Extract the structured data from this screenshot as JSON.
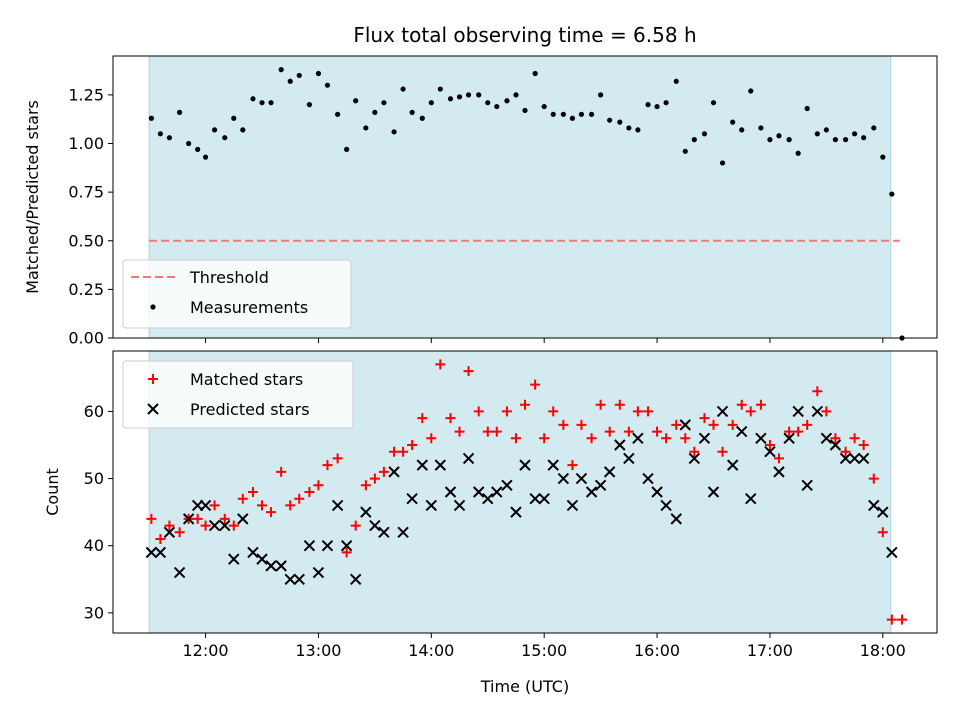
{
  "chart_data": {
    "type": "scatter",
    "title": "Flux total observing time = 6.58 h",
    "xlabel": "Time (UTC)",
    "x_ticks": [
      "12:00",
      "13:00",
      "14:00",
      "15:00",
      "16:00",
      "17:00",
      "18:00"
    ],
    "x_tick_hours": [
      12,
      13,
      14,
      15,
      16,
      17,
      18
    ],
    "xlim": [
      11.18,
      18.48
    ],
    "observing_window": [
      11.5,
      18.07
    ],
    "colors": {
      "window": "#d3eaf0",
      "window_edge": "#a8d5e0",
      "threshold": "#f47676",
      "measurements": "#000000",
      "matched": "#ff0000",
      "predicted": "#000000"
    },
    "top_panel": {
      "ylabel": "Matched/Predicted stars",
      "ylim": [
        0,
        1.45
      ],
      "y_ticks": [
        "0.00",
        "0.25",
        "0.50",
        "0.75",
        "1.00",
        "1.25"
      ],
      "y_tick_values": [
        0,
        0.25,
        0.5,
        0.75,
        1.0,
        1.25
      ],
      "threshold": {
        "name": "Threshold",
        "y": 0.5,
        "x_range": [
          11.5,
          18.15
        ]
      },
      "legend": {
        "placement": "lower-left",
        "entries": [
          "Threshold",
          "Measurements"
        ]
      },
      "series": [
        {
          "name": "Measurements",
          "points": [
            [
              11.52,
              1.13
            ],
            [
              11.6,
              1.05
            ],
            [
              11.68,
              1.03
            ],
            [
              11.77,
              1.16
            ],
            [
              11.85,
              1.0
            ],
            [
              11.93,
              0.97
            ],
            [
              12.0,
              0.93
            ],
            [
              12.08,
              1.07
            ],
            [
              12.17,
              1.03
            ],
            [
              12.25,
              1.13
            ],
            [
              12.33,
              1.07
            ],
            [
              12.42,
              1.23
            ],
            [
              12.5,
              1.21
            ],
            [
              12.58,
              1.21
            ],
            [
              12.67,
              1.38
            ],
            [
              12.75,
              1.32
            ],
            [
              12.83,
              1.35
            ],
            [
              12.92,
              1.2
            ],
            [
              13.0,
              1.36
            ],
            [
              13.08,
              1.3
            ],
            [
              13.17,
              1.15
            ],
            [
              13.25,
              0.97
            ],
            [
              13.33,
              1.22
            ],
            [
              13.42,
              1.08
            ],
            [
              13.5,
              1.16
            ],
            [
              13.58,
              1.21
            ],
            [
              13.67,
              1.06
            ],
            [
              13.75,
              1.28
            ],
            [
              13.83,
              1.16
            ],
            [
              13.92,
              1.13
            ],
            [
              14.0,
              1.21
            ],
            [
              14.08,
              1.28
            ],
            [
              14.17,
              1.23
            ],
            [
              14.25,
              1.24
            ],
            [
              14.33,
              1.25
            ],
            [
              14.42,
              1.25
            ],
            [
              14.5,
              1.21
            ],
            [
              14.58,
              1.19
            ],
            [
              14.67,
              1.22
            ],
            [
              14.75,
              1.25
            ],
            [
              14.83,
              1.17
            ],
            [
              14.92,
              1.36
            ],
            [
              15.0,
              1.19
            ],
            [
              15.08,
              1.15
            ],
            [
              15.17,
              1.15
            ],
            [
              15.25,
              1.13
            ],
            [
              15.33,
              1.15
            ],
            [
              15.42,
              1.15
            ],
            [
              15.5,
              1.25
            ],
            [
              15.58,
              1.12
            ],
            [
              15.67,
              1.11
            ],
            [
              15.75,
              1.08
            ],
            [
              15.83,
              1.07
            ],
            [
              15.92,
              1.2
            ],
            [
              16.0,
              1.19
            ],
            [
              16.08,
              1.21
            ],
            [
              16.17,
              1.32
            ],
            [
              16.25,
              0.96
            ],
            [
              16.33,
              1.02
            ],
            [
              16.42,
              1.05
            ],
            [
              16.5,
              1.21
            ],
            [
              16.58,
              0.9
            ],
            [
              16.67,
              1.11
            ],
            [
              16.75,
              1.07
            ],
            [
              16.83,
              1.27
            ],
            [
              16.92,
              1.08
            ],
            [
              17.0,
              1.02
            ],
            [
              17.08,
              1.04
            ],
            [
              17.17,
              1.02
            ],
            [
              17.25,
              0.95
            ],
            [
              17.33,
              1.18
            ],
            [
              17.42,
              1.05
            ],
            [
              17.5,
              1.07
            ],
            [
              17.58,
              1.02
            ],
            [
              17.67,
              1.02
            ],
            [
              17.75,
              1.05
            ],
            [
              17.83,
              1.03
            ],
            [
              17.92,
              1.08
            ],
            [
              18.0,
              0.93
            ],
            [
              18.08,
              0.74
            ],
            [
              18.17,
              0.0
            ]
          ]
        }
      ]
    },
    "bottom_panel": {
      "ylabel": "Count",
      "ylim": [
        27,
        69
      ],
      "y_ticks": [
        "30",
        "40",
        "50",
        "60"
      ],
      "y_tick_values": [
        30,
        40,
        50,
        60
      ],
      "legend": {
        "placement": "upper-left",
        "entries": [
          "Matched stars",
          "Predicted stars"
        ]
      },
      "series": [
        {
          "name": "Matched stars",
          "marker": "plus",
          "points": [
            [
              11.52,
              44
            ],
            [
              11.6,
              41
            ],
            [
              11.68,
              43
            ],
            [
              11.77,
              42
            ],
            [
              11.85,
              44
            ],
            [
              11.93,
              44
            ],
            [
              12.0,
              43
            ],
            [
              12.08,
              46
            ],
            [
              12.17,
              44
            ],
            [
              12.25,
              43
            ],
            [
              12.33,
              47
            ],
            [
              12.42,
              48
            ],
            [
              12.5,
              46
            ],
            [
              12.58,
              45
            ],
            [
              12.67,
              51
            ],
            [
              12.75,
              46
            ],
            [
              12.83,
              47
            ],
            [
              12.92,
              48
            ],
            [
              13.0,
              49
            ],
            [
              13.08,
              52
            ],
            [
              13.17,
              53
            ],
            [
              13.25,
              39
            ],
            [
              13.33,
              43
            ],
            [
              13.42,
              49
            ],
            [
              13.5,
              50
            ],
            [
              13.58,
              51
            ],
            [
              13.67,
              54
            ],
            [
              13.75,
              54
            ],
            [
              13.83,
              55
            ],
            [
              13.92,
              59
            ],
            [
              14.0,
              56
            ],
            [
              14.08,
              67
            ],
            [
              14.17,
              59
            ],
            [
              14.25,
              57
            ],
            [
              14.33,
              66
            ],
            [
              14.42,
              60
            ],
            [
              14.5,
              57
            ],
            [
              14.58,
              57
            ],
            [
              14.67,
              60
            ],
            [
              14.75,
              56
            ],
            [
              14.83,
              61
            ],
            [
              14.92,
              64
            ],
            [
              15.0,
              56
            ],
            [
              15.08,
              60
            ],
            [
              15.17,
              58
            ],
            [
              15.25,
              52
            ],
            [
              15.33,
              58
            ],
            [
              15.42,
              56
            ],
            [
              15.5,
              61
            ],
            [
              15.58,
              57
            ],
            [
              15.67,
              61
            ],
            [
              15.75,
              57
            ],
            [
              15.83,
              60
            ],
            [
              15.92,
              60
            ],
            [
              16.0,
              57
            ],
            [
              16.08,
              56
            ],
            [
              16.17,
              58
            ],
            [
              16.25,
              56
            ],
            [
              16.33,
              54
            ],
            [
              16.42,
              59
            ],
            [
              16.5,
              58
            ],
            [
              16.58,
              54
            ],
            [
              16.67,
              58
            ],
            [
              16.75,
              61
            ],
            [
              16.83,
              60
            ],
            [
              16.92,
              61
            ],
            [
              17.0,
              55
            ],
            [
              17.08,
              53
            ],
            [
              17.17,
              57
            ],
            [
              17.25,
              57
            ],
            [
              17.33,
              58
            ],
            [
              17.42,
              63
            ],
            [
              17.5,
              60
            ],
            [
              17.58,
              56
            ],
            [
              17.67,
              54
            ],
            [
              17.75,
              56
            ],
            [
              17.83,
              55
            ],
            [
              17.92,
              50
            ],
            [
              18.0,
              42
            ],
            [
              18.08,
              29
            ],
            [
              18.17,
              29
            ]
          ]
        },
        {
          "name": "Predicted stars",
          "marker": "x",
          "points": [
            [
              11.52,
              39
            ],
            [
              11.6,
              39
            ],
            [
              11.68,
              42
            ],
            [
              11.77,
              36
            ],
            [
              11.85,
              44
            ],
            [
              11.93,
              46
            ],
            [
              12.0,
              46
            ],
            [
              12.08,
              43
            ],
            [
              12.17,
              43
            ],
            [
              12.25,
              38
            ],
            [
              12.33,
              44
            ],
            [
              12.42,
              39
            ],
            [
              12.5,
              38
            ],
            [
              12.58,
              37
            ],
            [
              12.67,
              37
            ],
            [
              12.75,
              35
            ],
            [
              12.83,
              35
            ],
            [
              12.92,
              40
            ],
            [
              13.0,
              36
            ],
            [
              13.08,
              40
            ],
            [
              13.17,
              46
            ],
            [
              13.25,
              40
            ],
            [
              13.33,
              35
            ],
            [
              13.42,
              45
            ],
            [
              13.5,
              43
            ],
            [
              13.58,
              42
            ],
            [
              13.67,
              51
            ],
            [
              13.75,
              42
            ],
            [
              13.83,
              47
            ],
            [
              13.92,
              52
            ],
            [
              14.0,
              46
            ],
            [
              14.08,
              52
            ],
            [
              14.17,
              48
            ],
            [
              14.25,
              46
            ],
            [
              14.33,
              53
            ],
            [
              14.42,
              48
            ],
            [
              14.5,
              47
            ],
            [
              14.58,
              48
            ],
            [
              14.67,
              49
            ],
            [
              14.75,
              45
            ],
            [
              14.83,
              52
            ],
            [
              14.92,
              47
            ],
            [
              15.0,
              47
            ],
            [
              15.08,
              52
            ],
            [
              15.17,
              50
            ],
            [
              15.25,
              46
            ],
            [
              15.33,
              50
            ],
            [
              15.42,
              48
            ],
            [
              15.5,
              49
            ],
            [
              15.58,
              51
            ],
            [
              15.67,
              55
            ],
            [
              15.75,
              53
            ],
            [
              15.83,
              56
            ],
            [
              15.92,
              50
            ],
            [
              16.0,
              48
            ],
            [
              16.08,
              46
            ],
            [
              16.17,
              44
            ],
            [
              16.25,
              58
            ],
            [
              16.33,
              53
            ],
            [
              16.42,
              56
            ],
            [
              16.5,
              48
            ],
            [
              16.58,
              60
            ],
            [
              16.67,
              52
            ],
            [
              16.75,
              57
            ],
            [
              16.83,
              47
            ],
            [
              16.92,
              56
            ],
            [
              17.0,
              54
            ],
            [
              17.08,
              51
            ],
            [
              17.17,
              56
            ],
            [
              17.25,
              60
            ],
            [
              17.33,
              49
            ],
            [
              17.42,
              60
            ],
            [
              17.5,
              56
            ],
            [
              17.58,
              55
            ],
            [
              17.67,
              53
            ],
            [
              17.75,
              53
            ],
            [
              17.83,
              53
            ],
            [
              17.92,
              46
            ],
            [
              18.0,
              45
            ],
            [
              18.08,
              39
            ]
          ]
        }
      ]
    }
  }
}
